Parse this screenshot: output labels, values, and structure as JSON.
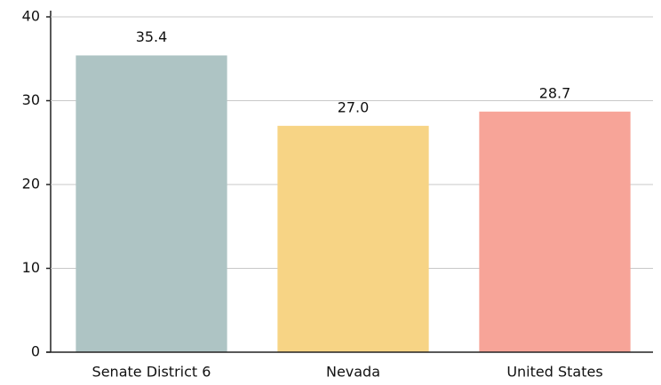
{
  "chart_data": {
    "type": "bar",
    "categories": [
      "Senate District 6",
      "Nevada",
      "United States"
    ],
    "values": [
      35.4,
      27.0,
      28.7
    ],
    "value_labels": [
      "35.4",
      "27.0",
      "28.7"
    ],
    "colors": [
      "#aec4c4",
      "#f7d485",
      "#f7a498"
    ],
    "ylim": [
      0,
      40
    ],
    "yticks": [
      0,
      10,
      20,
      30,
      40
    ],
    "grid": true
  }
}
